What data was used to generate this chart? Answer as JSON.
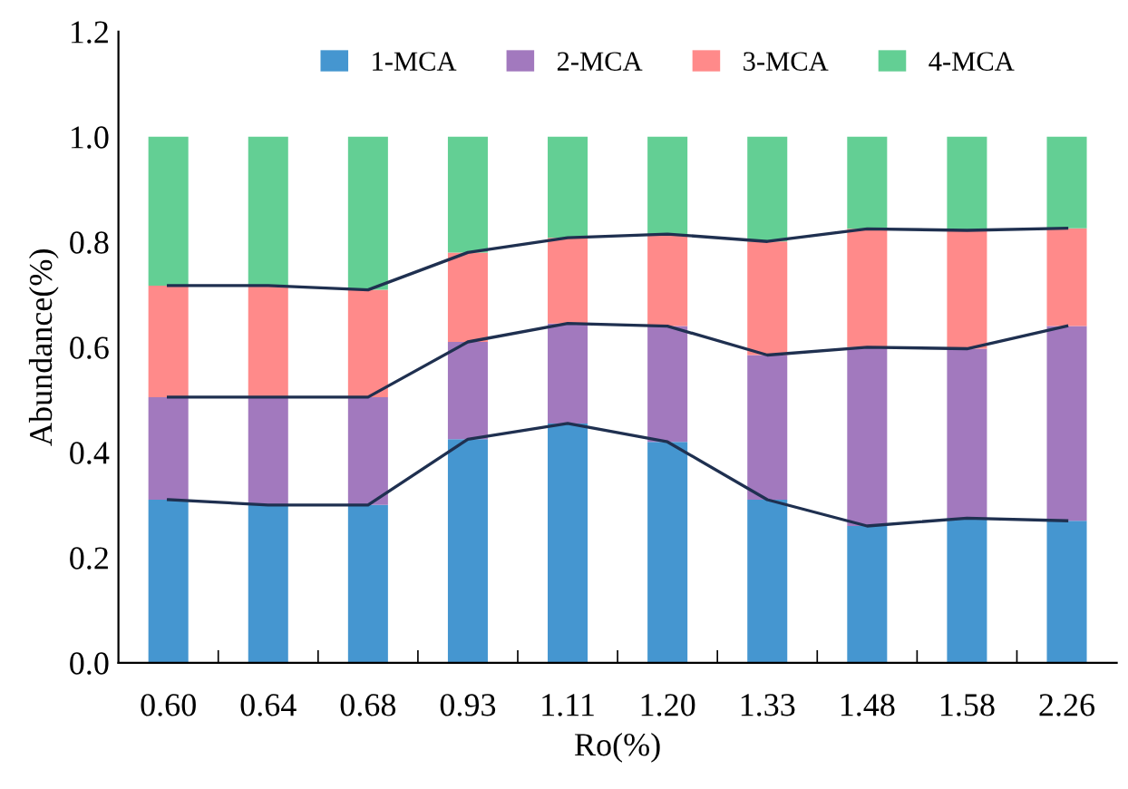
{
  "chart_data": {
    "type": "bar",
    "stacked": true,
    "xlabel": "Ro(%)",
    "ylabel": "Abundance(%)",
    "categories": [
      "0.60",
      "0.64",
      "0.68",
      "0.93",
      "1.11",
      "1.20",
      "1.33",
      "1.48",
      "1.58",
      "2.26"
    ],
    "series": [
      {
        "name": "1-MCA",
        "color": "#4596d0",
        "values": [
          0.31,
          0.3,
          0.3,
          0.425,
          0.455,
          0.42,
          0.31,
          0.26,
          0.275,
          0.27
        ]
      },
      {
        "name": "2-MCA",
        "color": "#a279be",
        "values": [
          0.195,
          0.205,
          0.205,
          0.185,
          0.19,
          0.22,
          0.275,
          0.34,
          0.322,
          0.37
        ]
      },
      {
        "name": "3-MCA",
        "color": "#ff8a8a",
        "values": [
          0.212,
          0.212,
          0.204,
          0.17,
          0.163,
          0.175,
          0.216,
          0.225,
          0.225,
          0.186
        ]
      },
      {
        "name": "4-MCA",
        "color": "#63cf94",
        "values": [
          0.283,
          0.283,
          0.291,
          0.22,
          0.192,
          0.185,
          0.199,
          0.175,
          0.178,
          0.174
        ]
      },
      {
        "type": "line",
        "color": "#1f3050",
        "values": [
          0.31,
          0.3,
          0.3,
          0.425,
          0.455,
          0.42,
          0.31,
          0.26,
          0.275,
          0.27
        ]
      },
      {
        "type": "line",
        "color": "#1f3050",
        "values": [
          0.505,
          0.505,
          0.505,
          0.61,
          0.645,
          0.64,
          0.585,
          0.6,
          0.597,
          0.64
        ]
      },
      {
        "type": "line",
        "color": "#1f3050",
        "values": [
          0.717,
          0.717,
          0.709,
          0.78,
          0.808,
          0.815,
          0.801,
          0.825,
          0.822,
          0.826
        ]
      }
    ],
    "ylim": [
      0,
      1.2
    ],
    "yticks": [
      {
        "value": 0,
        "label": "0.0"
      },
      {
        "value": 0.2,
        "label": "0.2"
      },
      {
        "value": 0.4,
        "label": "0.4"
      },
      {
        "value": 0.6,
        "label": "0.6"
      },
      {
        "value": 0.8,
        "label": "0.8"
      },
      {
        "value": 1.0,
        "label": "1.0"
      },
      {
        "value": 1.2,
        "label": "1.2"
      }
    ],
    "grid": false,
    "legend": "top",
    "marker": "none",
    "line_style": "solid"
  }
}
